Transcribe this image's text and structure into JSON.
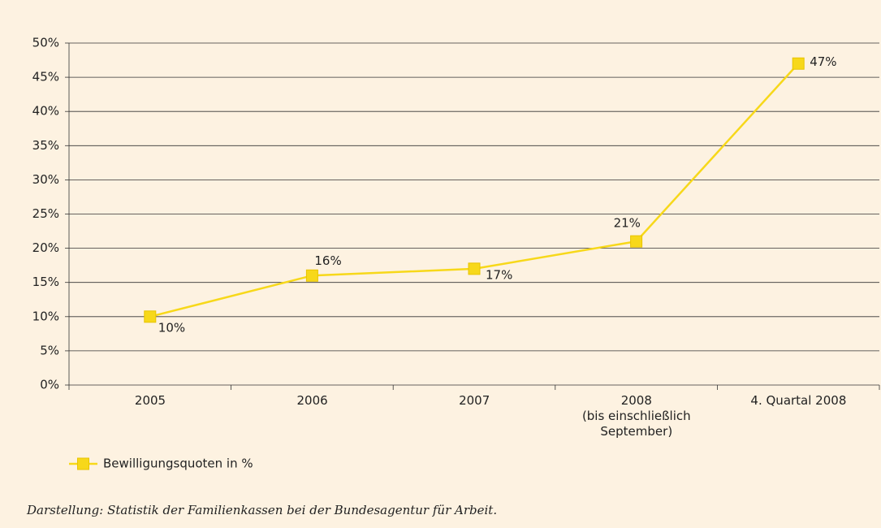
{
  "chart_data": {
    "type": "line",
    "categories": [
      "2005",
      "2006",
      "2007",
      "2008\n(bis einschließlich\nSeptember)",
      "4. Quartal 2008"
    ],
    "series": [
      {
        "name": "Bewilligungsquoten in %",
        "color": "#f7d81a",
        "values": [
          10,
          16,
          17,
          21,
          47
        ],
        "value_labels": [
          "10%",
          "16%",
          "17%",
          "21%",
          "47%"
        ]
      }
    ],
    "ylim": [
      0,
      50
    ],
    "yticks": [
      {
        "value": 0,
        "label": "0%"
      },
      {
        "value": 5,
        "label": "5%"
      },
      {
        "value": 10,
        "label": "10%"
      },
      {
        "value": 15,
        "label": "15%"
      },
      {
        "value": 20,
        "label": "20%"
      },
      {
        "value": 25,
        "label": "25%"
      },
      {
        "value": 30,
        "label": "30%"
      },
      {
        "value": 35,
        "label": "35%"
      },
      {
        "value": 40,
        "label": "40%"
      },
      {
        "value": 45,
        "label": "45%"
      },
      {
        "value": 50,
        "label": "50%"
      }
    ],
    "grid": true,
    "legend": "bottom-left",
    "source": "Darstellung: Statistik der Familienkassen bei der Bundesagentur für Arbeit."
  }
}
